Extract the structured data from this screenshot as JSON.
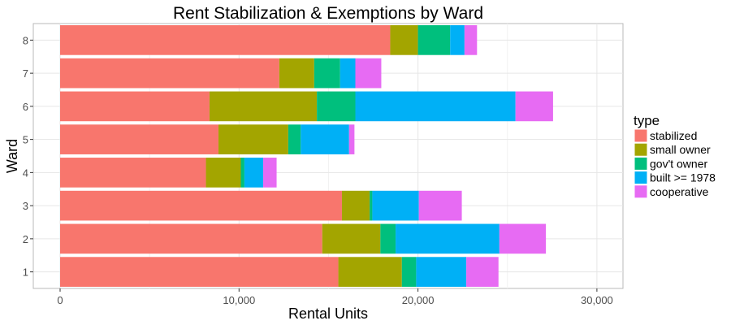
{
  "chart_data": {
    "type": "bar",
    "orientation": "horizontal",
    "stacked": true,
    "title": "Rent Stabilization & Exemptions by Ward",
    "xlabel": "Rental Units",
    "ylabel": "Ward",
    "xlim": [
      0,
      31000
    ],
    "xticks": [
      0,
      10000,
      20000,
      30000
    ],
    "xtick_labels": [
      "0",
      "10,000",
      "20,000",
      "30,000"
    ],
    "grid": true,
    "legend_title": "type",
    "legend_position": "right",
    "categories": [
      "1",
      "2",
      "3",
      "4",
      "5",
      "6",
      "7",
      "8"
    ],
    "series": [
      {
        "name": "stabilized",
        "color": "#F8766D",
        "values": [
          15550,
          14650,
          15750,
          8150,
          8850,
          8350,
          12250,
          18450
        ]
      },
      {
        "name": "small owner",
        "color": "#A3A500",
        "values": [
          3550,
          3250,
          1550,
          1950,
          3900,
          6000,
          1950,
          1550
        ]
      },
      {
        "name": "gov't owner",
        "color": "#00BF7D",
        "values": [
          800,
          850,
          150,
          200,
          700,
          2150,
          1450,
          1800
        ]
      },
      {
        "name": "built >= 1978",
        "color": "#00B0F6",
        "values": [
          2800,
          5800,
          2600,
          1050,
          2700,
          8950,
          850,
          800
        ]
      },
      {
        "name": "cooperative",
        "color": "#E76BF3",
        "values": [
          1800,
          2600,
          2400,
          750,
          300,
          2100,
          1450,
          700
        ]
      }
    ]
  }
}
